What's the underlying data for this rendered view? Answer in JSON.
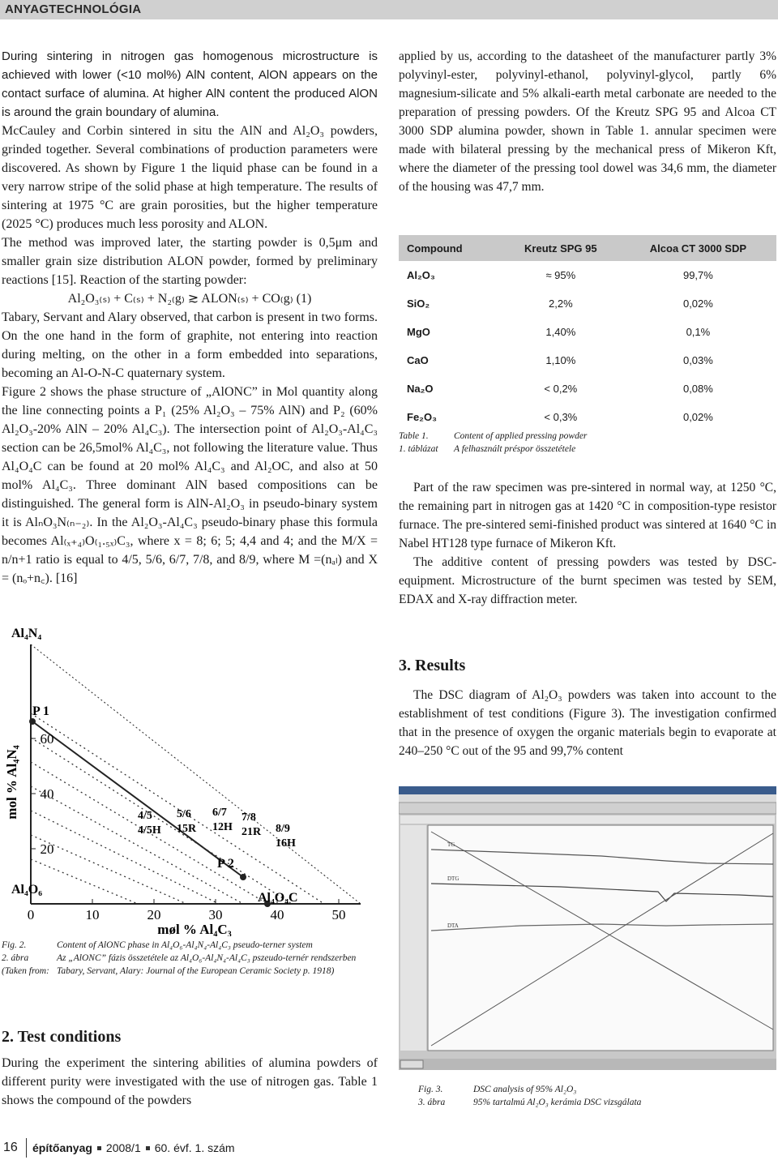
{
  "header": {
    "section": "ANYAGTECHNOLÓGIA"
  },
  "left_column": {
    "paragraphs": [
      "During sintering in nitrogen gas homogenous microstructure is achieved with lower (<10 mol%) AlN content, AlON appears on the contact surface of alumina. At higher AlN content the produced AlON is around the grain boundary of alumina.",
      "McCauley and Corbin sintered in situ the AlN and Al₂O₃ powders, grinded together. Several combinations of production parameters were discovered. As shown by Figure 1 the liquid phase can be found in a very narrow stripe of the solid phase at high temperature. The results of sintering at 1975 °C are grain porosities, but the higher temperature (2025 °C) produces much less porosity and ALON.",
      "The method was improved later, the starting powder is 0,5μm and smaller grain size distribution ALON powder, formed by preliminary reactions [15]. Reaction of the starting powder:"
    ],
    "equation": "Al₂O₃₍ₛ₎ + C₍ₛ₎ + N₂₍g₎ ≳ ALON₍ₛ₎ + CO₍g₎  (1)",
    "paragraphs_after": [
      "Tabary, Servant and Alary observed, that carbon is present in two forms. On the one hand in the form of graphite, not entering into reaction during melting, on the other in a form embedded into separations, becoming an Al-O-N-C quaternary system.",
      "Figure 2 shows the phase structure of „AlONC” in Mol quantity along the line connecting points a P₁ (25% Al₂O₃ – 75% AlN) and P₂ (60% Al₂O₃-20% AlN – 20% Al₄C₃). The intersection point of Al₂O₃-Al₄C₃ section can be 26,5mol% Al₄C₃, not following the literature value. Thus Al₄O₄C can be found at 20 mol% Al₄C₃ and Al₂OC, and also at 50 mol% Al₄C₃. Three dominant AlN based compositions can be distinguished. The general form is AlN-Al₂O₃ in pseudo-binary system it is AlₙO₃N₍ₙ₋₂₎. In the Al₂O₃-Al₄C₃ pseudo-binary phase this formula becomes Al₍ₓ₊₄₎O₍₁.₅ₓ₎C₃, where x = 8; 6; 5; 4,4 and 4; and the M/X = n/n+1 ratio is equal to 4/5, 5/6, 6/7, 7/8, and 8/9, where M =(nₐₗ) and X = (nₒ+n꜀). [16]"
    ]
  },
  "figure2": {
    "y_axis_title": "mol % Al₄N₄",
    "x_axis_title": "møl % Al₄C₃",
    "yticks": [
      20,
      40,
      60
    ],
    "xticks": [
      0,
      10,
      20,
      30,
      40,
      50
    ],
    "labels": [
      "Al₄N₄",
      "P 1",
      "Al₄O₆",
      "Al₄O₄C",
      "P 2",
      "4/5",
      "4/5H",
      "5/6",
      "15R",
      "6/7",
      "12H",
      "7/8",
      "21R",
      "8/9",
      "16H"
    ],
    "caption": [
      {
        "label": "Fig. 2.",
        "text": "Content of AlONC phase in Al₄O₆-Al₄N₄-Al₄C₃ pseudo-terner system"
      },
      {
        "label": "2. ábra",
        "text": "Az „AlONC” fázis összetétele az Al₄O₆-Al₄N₄-Al₄C₃ pszeudo-ternér rendszerben"
      },
      {
        "label": "(Taken from:",
        "text": "Tabary, Servant, Alary: Journal of the European Ceramic Society p. 1918)"
      }
    ]
  },
  "section2": {
    "heading": "2. Test conditions",
    "paragraph": "During the experiment the sintering abilities of alumina powders of different purity were investigated with the use of nitrogen gas. Table 1 shows the compound of the powders"
  },
  "right_column": {
    "paragraph": "applied by us, according to the datasheet of the manufacturer partly 3% polyvinyl-ester, polyvinyl-ethanol, polyvinyl-glycol, partly 6% magnesium-silicate and 5% alkali-earth metal carbonate are needed to the preparation of pressing powders. Of the Kreutz SPG 95 and Alcoa CT 3000 SDP alumina powder, shown in Table 1. annular specimen were made with bilateral pressing by the mechanical press of Mikeron Kft, where the diameter of the pressing tool dowel was 34,6 mm, the diameter of the housing was 47,7 mm.",
    "paragraphs_after": [
      "Part of the raw specimen was pre-sintered in normal way, at 1250 °C, the remaining part in nitrogen gas at 1420 °C in composition-type resistor furnace. The pre-sintered semi-finished product was sintered at 1640 °C in Nabel HT128 type furnace of Mikeron Kft.",
      "The additive content of pressing powders was tested by DSC-equipment. Microstructure of the burnt specimen was tested by SEM, EDAX and X-ray diffraction meter."
    ],
    "heading": "3. Results",
    "results_paragraph": "The DSC diagram of Al₂O₃ powders was taken into account to the establishment of test conditions (Figure 3). The investigation confirmed that in the presence of oxygen the organic materials begin to evaporate at 240–250 °C out of the 95 and 99,7% content"
  },
  "table": {
    "columns": [
      "Compound",
      "Kreutz SPG 95",
      "Alcoa CT 3000 SDP"
    ],
    "rows": [
      [
        "Al₂O₃",
        "≈ 95%",
        "99,7%"
      ],
      [
        "SiO₂",
        "2,2%",
        "0,02%"
      ],
      [
        "MgO",
        "1,40%",
        "0,1%"
      ],
      [
        "CaO",
        "1,10%",
        "0,03%"
      ],
      [
        "Na₂O",
        "< 0,2%",
        "0,08%"
      ],
      [
        "Fe₂O₃",
        "< 0,3%",
        "0,02%"
      ]
    ],
    "caption": [
      {
        "label": "Table 1.",
        "text": "Content of applied pressing powder"
      },
      {
        "label": "1. táblázat",
        "text": "A felhasznált préspor összetétele"
      }
    ]
  },
  "figure3": {
    "curve_labels": [
      "TG",
      "DTG",
      "DTA"
    ],
    "caption": [
      {
        "label": "Fig. 3.",
        "text": "DSC analysis of 95% Al₂O₃"
      },
      {
        "label": "3. ábra",
        "text": "95% tartalmú Al₂O₃ kerámia DSC vizsgálata"
      }
    ]
  },
  "footer": {
    "page": "16",
    "journal": "építőanyag",
    "issue": "2008/1",
    "volume": "60. évf. 1. szám"
  }
}
